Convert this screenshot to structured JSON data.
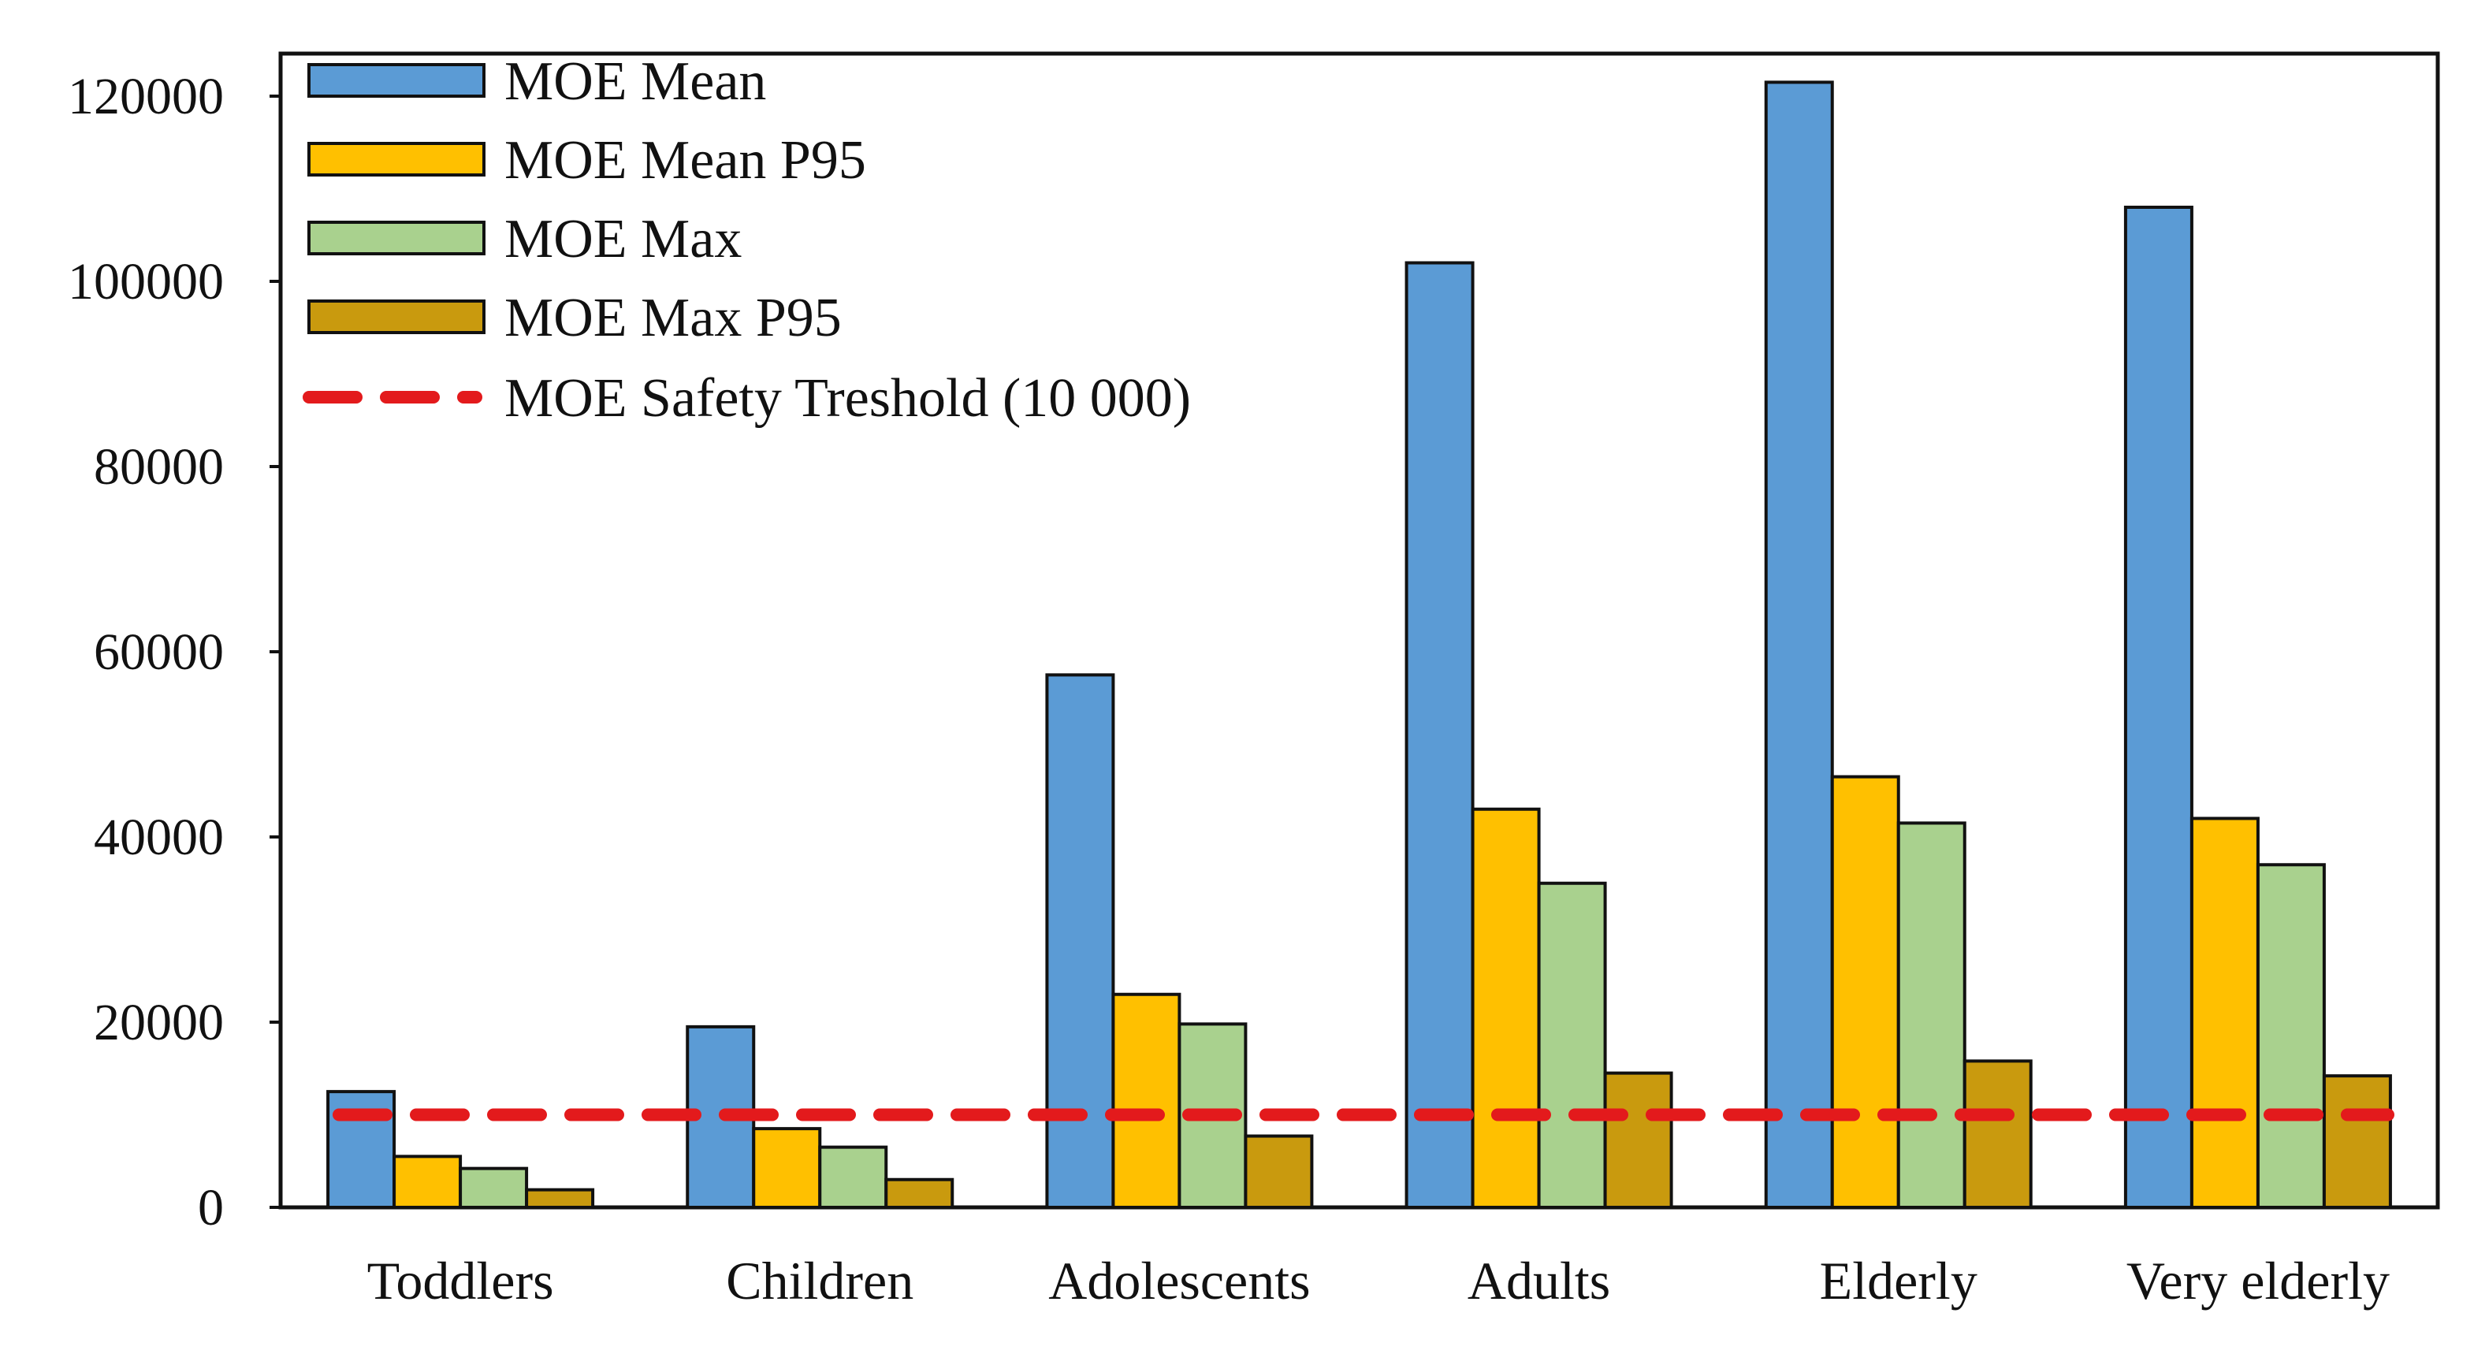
{
  "chart_data": {
    "type": "bar",
    "title": "",
    "xlabel": "",
    "ylabel": "",
    "ylim": [
      0,
      120000
    ],
    "yticks": [
      0,
      20000,
      40000,
      60000,
      80000,
      100000,
      120000
    ],
    "ytick_labels": [
      "0",
      "20000",
      "40000",
      "60000",
      "80000",
      "100000",
      "120000"
    ],
    "grid": false,
    "legend_position": "top-left",
    "categories": [
      "Toddlers",
      "Children",
      "Adolescents",
      "Adults",
      "Elderly",
      "Very elderly"
    ],
    "series": [
      {
        "name": "MOE Mean",
        "color": "#5B9BD5",
        "values": [
          12500,
          19500,
          57500,
          102000,
          121500,
          108000
        ]
      },
      {
        "name": "MOE Mean P95",
        "color": "#FFC000",
        "values": [
          5500,
          8500,
          23000,
          43000,
          46500,
          42000
        ]
      },
      {
        "name": "MOE Max",
        "color": "#A9D18E",
        "values": [
          4200,
          6500,
          19800,
          35000,
          41500,
          37000
        ]
      },
      {
        "name": "MOE Max P95",
        "color": "#C99A0E",
        "values": [
          1900,
          3000,
          7700,
          14500,
          15800,
          14200
        ]
      }
    ],
    "reference_line": {
      "name": "MOE Safety Treshold (10 000)",
      "value": 10000,
      "color": "#E31A1C",
      "style": "dashed"
    }
  }
}
